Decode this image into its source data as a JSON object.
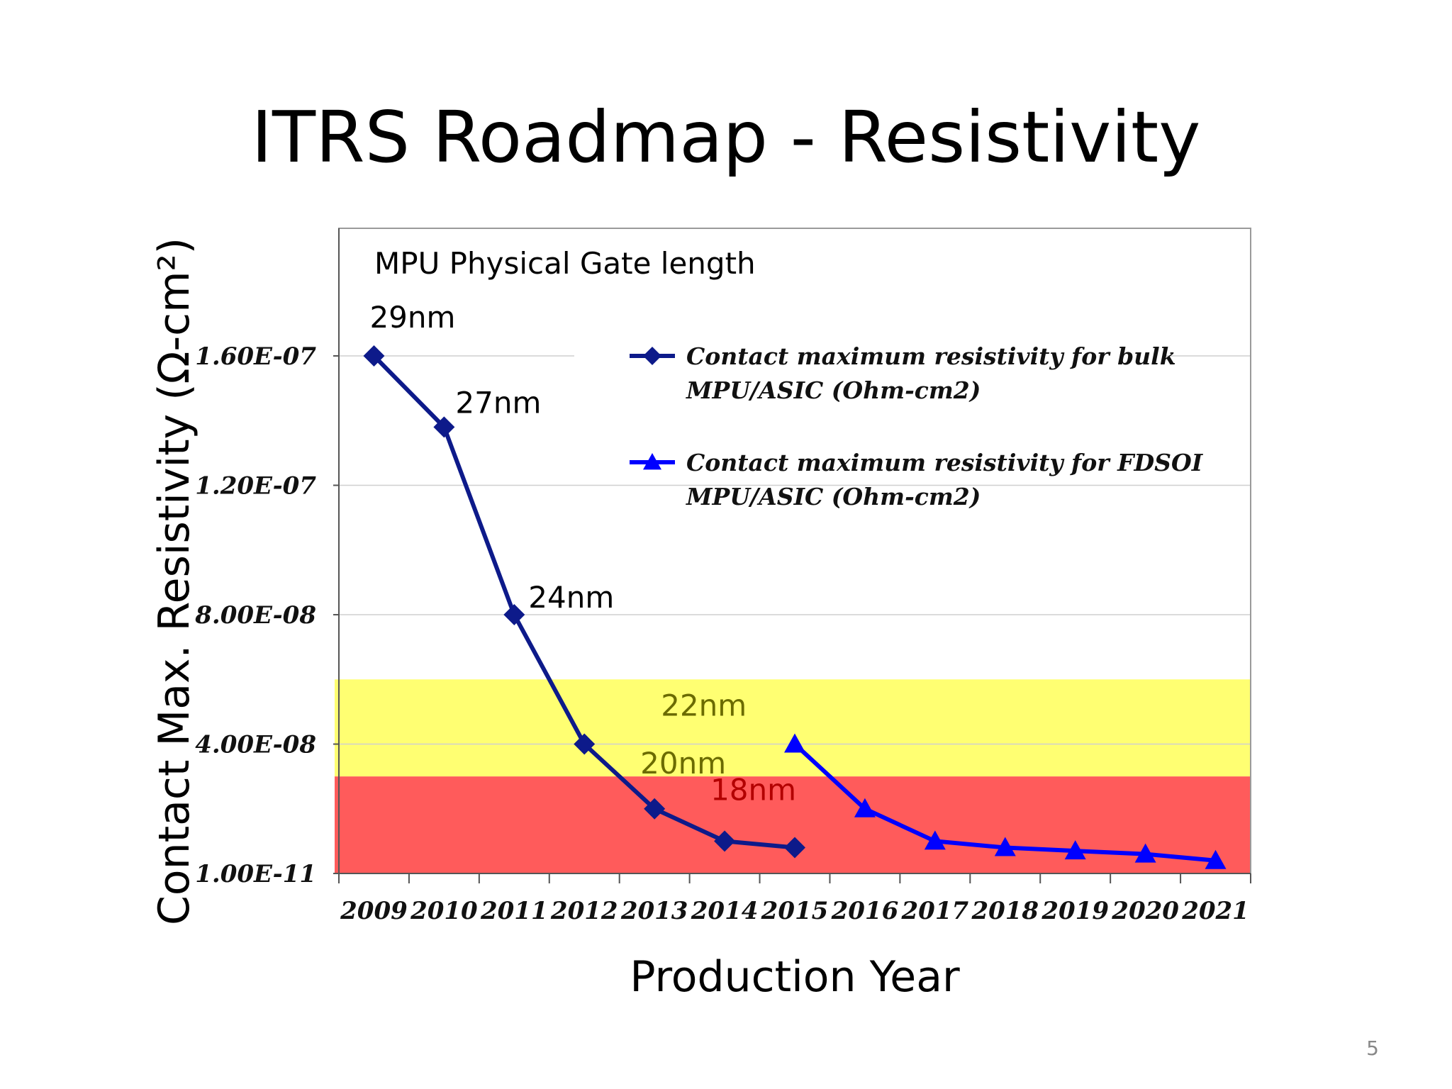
{
  "slide": {
    "title": "ITRS Roadmap - Resistivity",
    "page_number": "5"
  },
  "chart_data": {
    "type": "line",
    "xlabel": "Production Year",
    "ylabel": "Contact Max. Resistivity (Ω-cm²)",
    "x": [
      "2009",
      "2010",
      "2011",
      "2012",
      "2013",
      "2014",
      "2015",
      "2016",
      "2017",
      "2018",
      "2019",
      "2020",
      "2021"
    ],
    "y_ticks": [
      {
        "value": 1e-11,
        "label": "1.00E-11"
      },
      {
        "value": 4e-08,
        "label": "4.00E-08"
      },
      {
        "value": 8e-08,
        "label": "8.00E-08"
      },
      {
        "value": 1.2e-07,
        "label": "1.20E-07"
      },
      {
        "value": 1.6e-07,
        "label": "1.60E-07"
      }
    ],
    "ylim": [
      1e-11,
      1.6e-07
    ],
    "grid": true,
    "legend_position": "top-right",
    "series": [
      {
        "name": "Contact maximum resistivity for bulk MPU/ASIC (Ohm-cm2)",
        "legend_lines": [
          "Contact maximum resistivity for bulk",
          "MPU/ASIC (Ohm-cm2)"
        ],
        "marker": "diamond",
        "color": "#0d1a8a",
        "x": [
          "2009",
          "2010",
          "2011",
          "2012",
          "2013",
          "2014",
          "2015"
        ],
        "values": [
          1.6e-07,
          1.38e-07,
          8e-08,
          4e-08,
          2e-08,
          1e-08,
          8e-09
        ]
      },
      {
        "name": "Contact maximum resistivity for FDSOI MPU/ASIC (Ohm-cm2)",
        "legend_lines": [
          "Contact maximum resistivity for FDSOI",
          "MPU/ASIC (Ohm-cm2)"
        ],
        "marker": "triangle",
        "color": "#0000ff",
        "x": [
          "2015",
          "2016",
          "2017",
          "2018",
          "2019",
          "2020",
          "2021"
        ],
        "values": [
          4e-08,
          2e-08,
          1e-08,
          8e-09,
          7e-09,
          6e-09,
          4e-09
        ]
      }
    ],
    "bands": [
      {
        "from": 3e-08,
        "to": 6e-08,
        "color": "#ffff66"
      },
      {
        "from": 1e-11,
        "to": 3e-08,
        "color": "#ff4d4d"
      }
    ],
    "annotations": {
      "heading": "MPU Physical Gate length",
      "nodes": [
        {
          "label": "29nm",
          "x": "2009",
          "color": "#000000"
        },
        {
          "label": "27nm",
          "x": "2010",
          "color": "#000000"
        },
        {
          "label": "24nm",
          "x": "2011",
          "color": "#000000"
        },
        {
          "label": "22nm",
          "x": "2012",
          "color": "#6b6b00"
        },
        {
          "label": "20nm",
          "x": "2013",
          "color": "#6b6b00"
        },
        {
          "label": "18nm",
          "x": "2014",
          "color": "#b30000"
        }
      ]
    }
  }
}
